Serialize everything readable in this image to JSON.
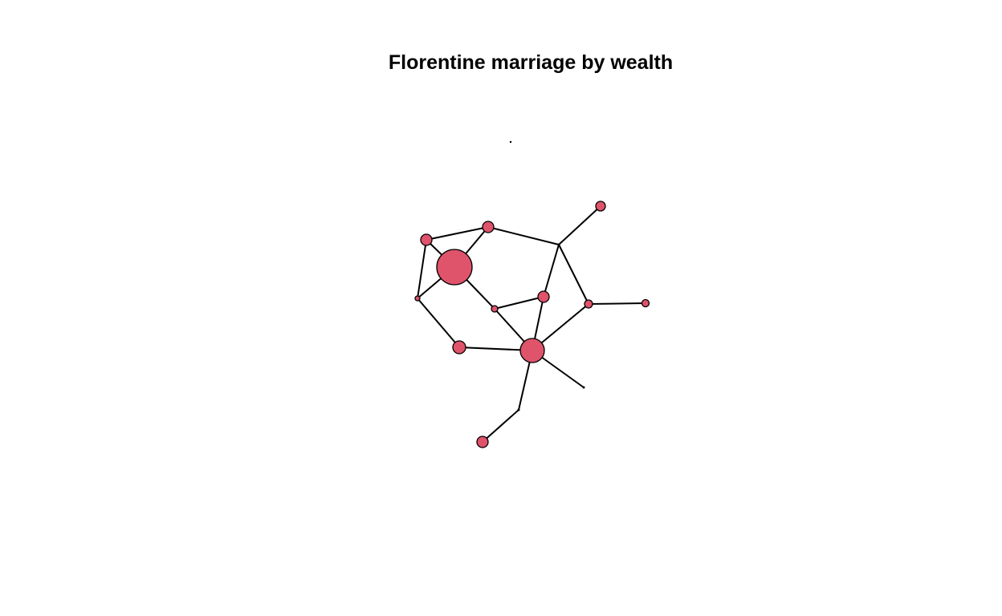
{
  "title": "Florentine marriage by wealth",
  "style": {
    "node_fill": "#DF536B",
    "node_stroke": "#000000",
    "edge_color": "#000000",
    "background": "#FFFFFF"
  },
  "network": {
    "nodes": [
      {
        "id": "n1"
      },
      {
        "id": "n2"
      },
      {
        "id": "n3"
      },
      {
        "id": "n4"
      },
      {
        "id": "n5"
      },
      {
        "id": "n6"
      },
      {
        "id": "n7"
      },
      {
        "id": "n8"
      },
      {
        "id": "n9"
      },
      {
        "id": "n10"
      },
      {
        "id": "n11"
      },
      {
        "id": "n12"
      },
      {
        "id": "n13"
      },
      {
        "id": "n14"
      },
      {
        "id": "n15"
      },
      {
        "id": "n16"
      }
    ],
    "edges": [
      [
        "n1",
        "n2"
      ],
      [
        "n1",
        "n3"
      ],
      [
        "n1",
        "n4"
      ],
      [
        "n2",
        "n3"
      ],
      [
        "n2",
        "n10"
      ],
      [
        "n3",
        "n4"
      ],
      [
        "n3",
        "n6"
      ],
      [
        "n4",
        "n5"
      ],
      [
        "n5",
        "n7"
      ],
      [
        "n6",
        "n7"
      ],
      [
        "n6",
        "n8"
      ],
      [
        "n7",
        "n8"
      ],
      [
        "n7",
        "n11"
      ],
      [
        "n7",
        "n13"
      ],
      [
        "n7",
        "n14"
      ],
      [
        "n8",
        "n10"
      ],
      [
        "n9",
        "n10"
      ],
      [
        "n10",
        "n11"
      ],
      [
        "n11",
        "n12"
      ],
      [
        "n14",
        "n15"
      ]
    ]
  }
}
